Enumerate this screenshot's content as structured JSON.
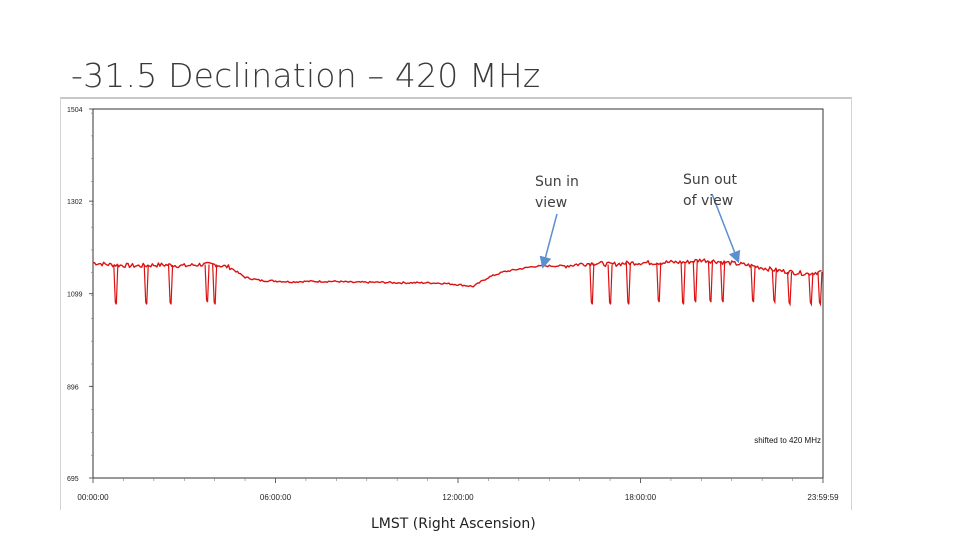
{
  "slide": {
    "title": "-31.5 Declination – 420 MHz"
  },
  "chart_data": {
    "type": "line",
    "xlabel": "LMST (Right Ascension)",
    "ylabel": "",
    "x_ticks": [
      "00:00:00",
      "06:00:00",
      "12:00:00",
      "18:00:00",
      "23:59:59"
    ],
    "x_tick_hours": [
      0,
      6,
      12,
      18,
      23.9997
    ],
    "y_ticks": [
      1504,
      1302,
      1099,
      896,
      695
    ],
    "xlim": [
      0,
      24
    ],
    "ylim": [
      695,
      1504
    ],
    "grid": false,
    "series": [
      {
        "color": "#dd1111",
        "x": [
          0.0,
          0.5,
          1.0,
          1.5,
          2.0,
          2.5,
          3.0,
          3.5,
          4.0,
          4.5,
          5.0,
          5.5,
          6.0,
          6.5,
          7.0,
          7.5,
          8.0,
          8.5,
          9.0,
          9.5,
          10.0,
          10.5,
          11.0,
          11.5,
          12.0,
          12.5,
          13.0,
          13.5,
          14.0,
          14.5,
          15.0,
          15.5,
          16.0,
          16.5,
          17.0,
          17.5,
          18.0,
          18.5,
          19.0,
          19.5,
          20.0,
          20.5,
          21.0,
          21.5,
          22.0,
          22.5,
          23.0,
          23.5,
          24.0
        ],
        "y": [
          1167,
          1163,
          1161,
          1160,
          1162,
          1162,
          1160,
          1163,
          1163,
          1157,
          1135,
          1128,
          1127,
          1125,
          1126,
          1126,
          1126,
          1124,
          1124,
          1124,
          1123,
          1123,
          1123,
          1122,
          1119,
          1115,
          1135,
          1147,
          1153,
          1159,
          1160,
          1160,
          1164,
          1166,
          1163,
          1166,
          1167,
          1167,
          1168,
          1168,
          1173,
          1170,
          1166,
          1162,
          1156,
          1150,
          1146,
          1143,
          1148
        ]
      }
    ],
    "dips": [
      {
        "x": 0.75,
        "y": 1080
      },
      {
        "x": 1.75,
        "y": 1080
      },
      {
        "x": 2.55,
        "y": 1080
      },
      {
        "x": 3.75,
        "y": 1085
      },
      {
        "x": 4.0,
        "y": 1080
      },
      {
        "x": 16.4,
        "y": 1080
      },
      {
        "x": 17.0,
        "y": 1080
      },
      {
        "x": 17.6,
        "y": 1080
      },
      {
        "x": 18.6,
        "y": 1085
      },
      {
        "x": 19.4,
        "y": 1080
      },
      {
        "x": 19.8,
        "y": 1085
      },
      {
        "x": 20.3,
        "y": 1085
      },
      {
        "x": 20.7,
        "y": 1085
      },
      {
        "x": 21.7,
        "y": 1085
      },
      {
        "x": 22.4,
        "y": 1085
      },
      {
        "x": 22.9,
        "y": 1080
      },
      {
        "x": 23.6,
        "y": 1080
      },
      {
        "x": 23.9,
        "y": 1080
      }
    ],
    "annotations": [
      {
        "name": "sun-in-view",
        "lines": [
          "Sun in",
          "view"
        ],
        "arrow_tip": {
          "x": 14.8,
          "y": 1160
        }
      },
      {
        "name": "sun-out-of-view",
        "lines": [
          "Sun out",
          "of view"
        ],
        "arrow_tip": {
          "x": 21.2,
          "y": 1172
        }
      }
    ],
    "corner_note": "shifted to 420 MHz"
  }
}
